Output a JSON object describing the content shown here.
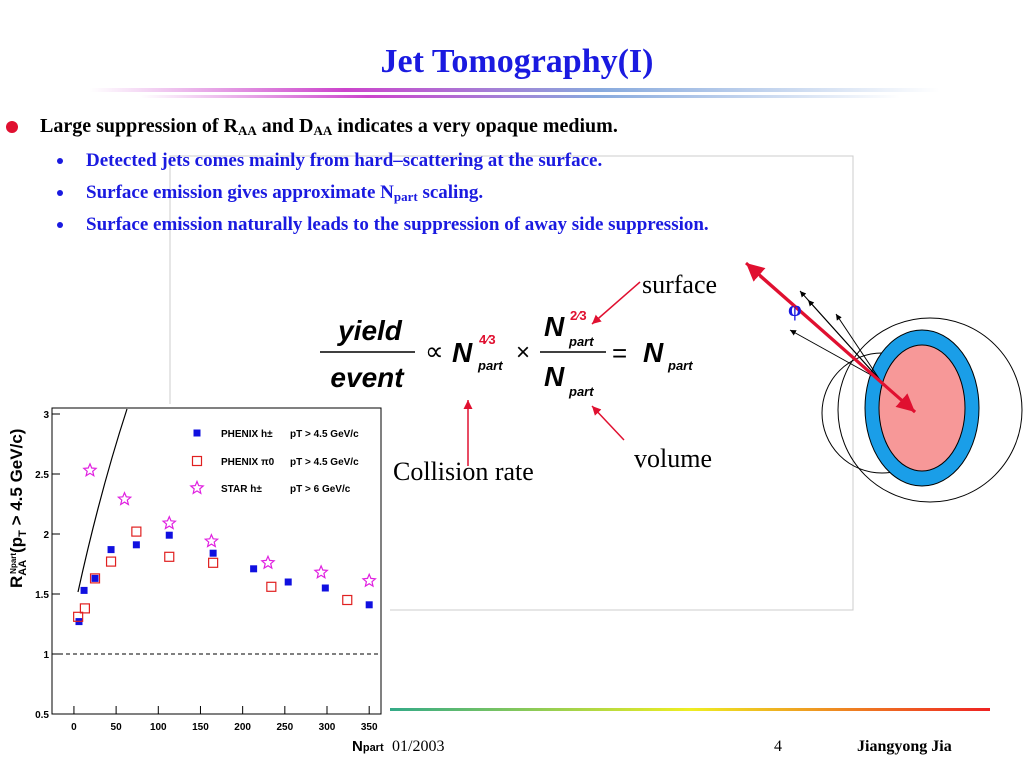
{
  "title": "Jet Tomography(I)",
  "bullets": [
    {
      "level": 1,
      "parts": [
        {
          "text": "Large suppression of R"
        },
        {
          "text": "AA",
          "sub": true
        },
        {
          "text": " and D"
        },
        {
          "text": "AA",
          "sub": true
        },
        {
          "text": " indicates a very opaque medium."
        }
      ]
    },
    {
      "level": 2,
      "parts": [
        {
          "text": "Detected jets comes mainly from hard–scattering at the surface."
        }
      ]
    },
    {
      "level": 2,
      "parts": [
        {
          "text": "Surface emission gives approximate N"
        },
        {
          "text": "part",
          "sub": true
        },
        {
          "text": " scaling."
        }
      ]
    },
    {
      "level": 2,
      "parts": [
        {
          "text": "Surface emission naturally leads to the suppression of away side suppression."
        }
      ]
    }
  ],
  "formula": {
    "lhs_numerator": "yield",
    "lhs_denominator": "event",
    "relation": "∝",
    "n": "N",
    "sub": "part",
    "exp_volume": "4⁄3",
    "times": "×",
    "exp_surface": "2⁄3",
    "equals": "="
  },
  "annotations": {
    "surface": "surface",
    "volume": "volume",
    "collision_rate": "Collision rate",
    "phi": "φ"
  },
  "chart_data": {
    "type": "scatter",
    "xlabel": [
      "N",
      "part"
    ],
    "ylabel": [
      "R",
      "AA",
      "Npart",
      "(p",
      "T",
      " > 4.5 GeV/c)"
    ],
    "xlim": [
      -26,
      364
    ],
    "ylim": [
      0.5,
      3.05
    ],
    "xticks": [
      0,
      50,
      100,
      150,
      200,
      250,
      300,
      350
    ],
    "yticks": [
      0.5,
      1,
      1.5,
      2,
      2.5,
      3
    ],
    "reference_line": 1,
    "series": [
      {
        "name": "PHENIX h±",
        "cut": "pT > 4.5 GeV/c",
        "color": "#1010e0",
        "marker": "filled-square",
        "x": [
          6,
          12,
          25,
          44,
          74,
          113,
          165,
          213,
          254,
          298,
          350
        ],
        "values": [
          1.27,
          1.53,
          1.63,
          1.87,
          1.91,
          1.99,
          1.84,
          1.71,
          1.6,
          1.55,
          1.41
        ]
      },
      {
        "name": "PHENIX π0",
        "cut": "pT > 4.5 GeV/c",
        "color": "#e02020",
        "marker": "open-square",
        "x": [
          5,
          13,
          25,
          44,
          74,
          113,
          165,
          234,
          324
        ],
        "values": [
          1.31,
          1.38,
          1.63,
          1.77,
          2.02,
          1.81,
          1.76,
          1.56,
          1.45
        ]
      },
      {
        "name": "STAR h±",
        "cut": "pT > 6 GeV/c",
        "color": "#e020e0",
        "marker": "star",
        "x": [
          19,
          60,
          113,
          163,
          230,
          293,
          350
        ],
        "values": [
          2.53,
          2.29,
          2.09,
          1.94,
          1.76,
          1.68,
          1.61
        ]
      }
    ]
  },
  "footer": {
    "date": "01/2003",
    "page": "4",
    "author": "Jiangyong Jia"
  }
}
